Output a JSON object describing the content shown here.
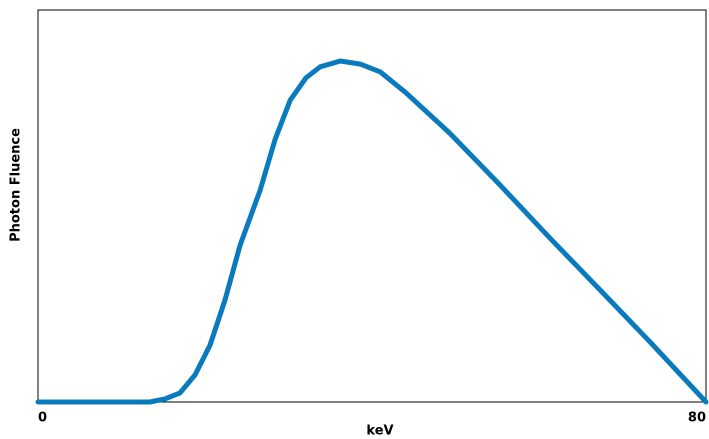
{
  "chart_data": {
    "type": "line",
    "x_label": "keV",
    "y_label": "Photon Fluence",
    "x": [
      0,
      13.4,
      15.2,
      17,
      18.8,
      20.6,
      22.4,
      24.2,
      26.6,
      28.4,
      30.2,
      32.1,
      33.8,
      36.2,
      38.6,
      41,
      44,
      49.3,
      55.3,
      61.3,
      67.3,
      73.3,
      80
    ],
    "series": [
      {
        "name": "Photon Fluence",
        "color": "#0a7abf",
        "values": [
          0,
          0,
          0.8,
          2.3,
          6.9,
          14.5,
          26,
          40,
          54,
          67,
          77,
          82.7,
          85.5,
          87,
          86.2,
          84.2,
          79,
          68.6,
          55.4,
          41.8,
          28.6,
          15.3,
          0
        ]
      }
    ],
    "xlim": [
      0,
      80
    ],
    "xticks": [
      0,
      80
    ],
    "ylim": [
      0,
      100
    ]
  }
}
